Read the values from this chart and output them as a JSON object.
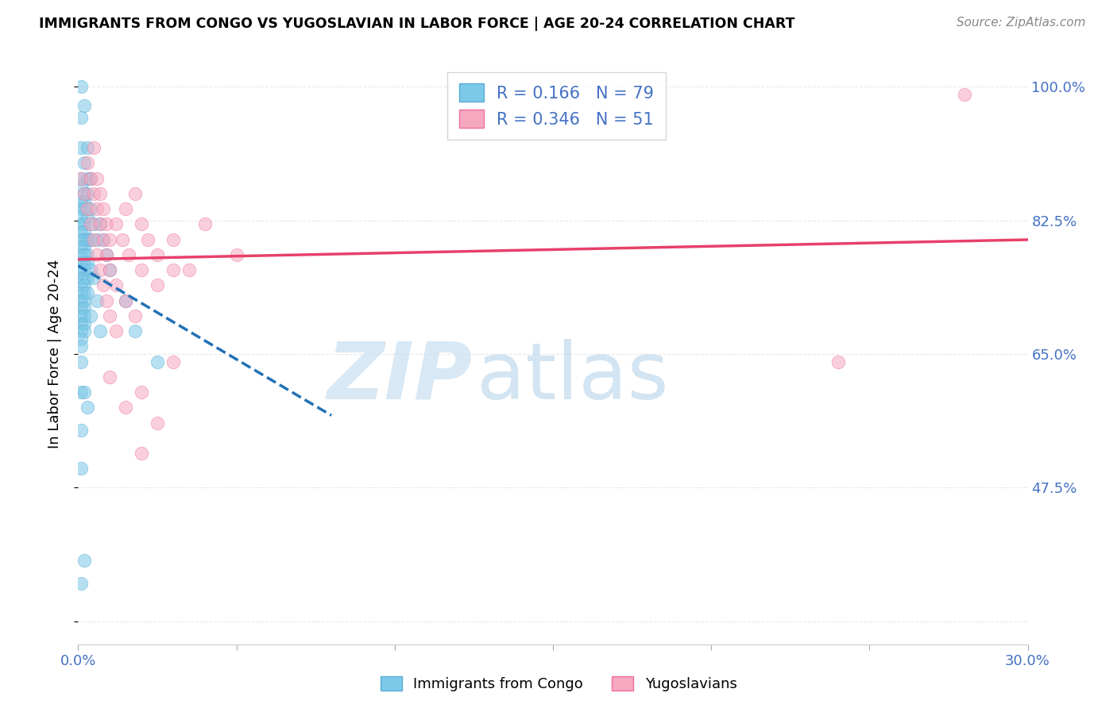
{
  "title": "IMMIGRANTS FROM CONGO VS YUGOSLAVIAN IN LABOR FORCE | AGE 20-24 CORRELATION CHART",
  "source": "Source: ZipAtlas.com",
  "ylabel": "In Labor Force | Age 20-24",
  "xlim": [
    0.0,
    0.3
  ],
  "ylim": [
    0.27,
    1.03
  ],
  "xtick_positions": [
    0.0,
    0.05,
    0.1,
    0.15,
    0.2,
    0.25,
    0.3
  ],
  "xticklabels": [
    "0.0%",
    "",
    "",
    "",
    "",
    "",
    "30.0%"
  ],
  "ytick_positions": [
    0.3,
    0.475,
    0.65,
    0.825,
    1.0
  ],
  "yticklabels": [
    "",
    "47.5%",
    "65.0%",
    "82.5%",
    "100.0%"
  ],
  "congo_color": "#7bc8e8",
  "congo_edge": "#5aadd4",
  "yugoslav_color": "#f5a8c0",
  "yugoslav_edge": "#f07098",
  "congo_line_color": "#2171b5",
  "yugoslav_line_color": "#e8406a",
  "tick_color": "#4472c4",
  "grid_color": "#e8e8e8",
  "bg_color": "#ffffff",
  "watermark_text": "ZIPatlas",
  "watermark_color": "#dceef8",
  "legend_label_congo": "Immigrants from Congo",
  "legend_label_yugoslav": "Yugoslavians",
  "R_congo": "0.166",
  "N_congo": "79",
  "R_yugoslav": "0.346",
  "N_yugoslav": "51",
  "congo_points": [
    [
      0.001,
      1.0
    ],
    [
      0.001,
      0.96
    ],
    [
      0.002,
      0.975
    ],
    [
      0.001,
      0.92
    ],
    [
      0.002,
      0.9
    ],
    [
      0.001,
      0.88
    ],
    [
      0.001,
      0.87
    ],
    [
      0.002,
      0.86
    ],
    [
      0.002,
      0.85
    ],
    [
      0.001,
      0.85
    ],
    [
      0.002,
      0.84
    ],
    [
      0.001,
      0.84
    ],
    [
      0.003,
      0.92
    ],
    [
      0.003,
      0.88
    ],
    [
      0.003,
      0.86
    ],
    [
      0.001,
      0.83
    ],
    [
      0.001,
      0.82
    ],
    [
      0.002,
      0.82
    ],
    [
      0.002,
      0.81
    ],
    [
      0.003,
      0.83
    ],
    [
      0.004,
      0.88
    ],
    [
      0.001,
      0.81
    ],
    [
      0.002,
      0.8
    ],
    [
      0.001,
      0.8
    ],
    [
      0.002,
      0.79
    ],
    [
      0.001,
      0.79
    ],
    [
      0.003,
      0.8
    ],
    [
      0.001,
      0.78
    ],
    [
      0.002,
      0.78
    ],
    [
      0.004,
      0.84
    ],
    [
      0.001,
      0.77
    ],
    [
      0.002,
      0.77
    ],
    [
      0.003,
      0.78
    ],
    [
      0.001,
      0.76
    ],
    [
      0.002,
      0.76
    ],
    [
      0.003,
      0.77
    ],
    [
      0.001,
      0.75
    ],
    [
      0.002,
      0.75
    ],
    [
      0.004,
      0.8
    ],
    [
      0.001,
      0.74
    ],
    [
      0.002,
      0.74
    ],
    [
      0.003,
      0.75
    ],
    [
      0.001,
      0.73
    ],
    [
      0.002,
      0.73
    ],
    [
      0.005,
      0.82
    ],
    [
      0.001,
      0.72
    ],
    [
      0.002,
      0.72
    ],
    [
      0.001,
      0.71
    ],
    [
      0.002,
      0.71
    ],
    [
      0.003,
      0.73
    ],
    [
      0.004,
      0.76
    ],
    [
      0.001,
      0.7
    ],
    [
      0.002,
      0.7
    ],
    [
      0.006,
      0.8
    ],
    [
      0.001,
      0.69
    ],
    [
      0.002,
      0.69
    ],
    [
      0.007,
      0.82
    ],
    [
      0.001,
      0.68
    ],
    [
      0.002,
      0.68
    ],
    [
      0.005,
      0.75
    ],
    [
      0.001,
      0.67
    ],
    [
      0.006,
      0.72
    ],
    [
      0.008,
      0.8
    ],
    [
      0.001,
      0.66
    ],
    [
      0.004,
      0.7
    ],
    [
      0.009,
      0.78
    ],
    [
      0.001,
      0.64
    ],
    [
      0.007,
      0.68
    ],
    [
      0.01,
      0.76
    ],
    [
      0.001,
      0.6
    ],
    [
      0.015,
      0.72
    ],
    [
      0.002,
      0.6
    ],
    [
      0.003,
      0.58
    ],
    [
      0.018,
      0.68
    ],
    [
      0.001,
      0.55
    ],
    [
      0.001,
      0.5
    ],
    [
      0.025,
      0.64
    ],
    [
      0.002,
      0.38
    ],
    [
      0.001,
      0.35
    ]
  ],
  "yugoslav_points": [
    [
      0.001,
      0.88
    ],
    [
      0.003,
      0.9
    ],
    [
      0.005,
      0.92
    ],
    [
      0.002,
      0.86
    ],
    [
      0.004,
      0.88
    ],
    [
      0.006,
      0.88
    ],
    [
      0.003,
      0.84
    ],
    [
      0.005,
      0.86
    ],
    [
      0.007,
      0.86
    ],
    [
      0.004,
      0.82
    ],
    [
      0.006,
      0.84
    ],
    [
      0.008,
      0.84
    ],
    [
      0.005,
      0.8
    ],
    [
      0.007,
      0.82
    ],
    [
      0.009,
      0.82
    ],
    [
      0.006,
      0.78
    ],
    [
      0.008,
      0.8
    ],
    [
      0.01,
      0.8
    ],
    [
      0.007,
      0.76
    ],
    [
      0.009,
      0.78
    ],
    [
      0.012,
      0.82
    ],
    [
      0.008,
      0.74
    ],
    [
      0.01,
      0.76
    ],
    [
      0.014,
      0.8
    ],
    [
      0.009,
      0.72
    ],
    [
      0.012,
      0.74
    ],
    [
      0.016,
      0.78
    ],
    [
      0.01,
      0.7
    ],
    [
      0.015,
      0.72
    ],
    [
      0.02,
      0.76
    ],
    [
      0.012,
      0.68
    ],
    [
      0.018,
      0.7
    ],
    [
      0.025,
      0.74
    ],
    [
      0.015,
      0.84
    ],
    [
      0.02,
      0.82
    ],
    [
      0.03,
      0.8
    ],
    [
      0.018,
      0.86
    ],
    [
      0.025,
      0.78
    ],
    [
      0.035,
      0.76
    ],
    [
      0.022,
      0.8
    ],
    [
      0.03,
      0.76
    ],
    [
      0.04,
      0.82
    ],
    [
      0.01,
      0.62
    ],
    [
      0.02,
      0.6
    ],
    [
      0.03,
      0.64
    ],
    [
      0.015,
      0.58
    ],
    [
      0.025,
      0.56
    ],
    [
      0.02,
      0.52
    ],
    [
      0.05,
      0.78
    ],
    [
      0.24,
      0.64
    ],
    [
      0.28,
      0.99
    ]
  ]
}
